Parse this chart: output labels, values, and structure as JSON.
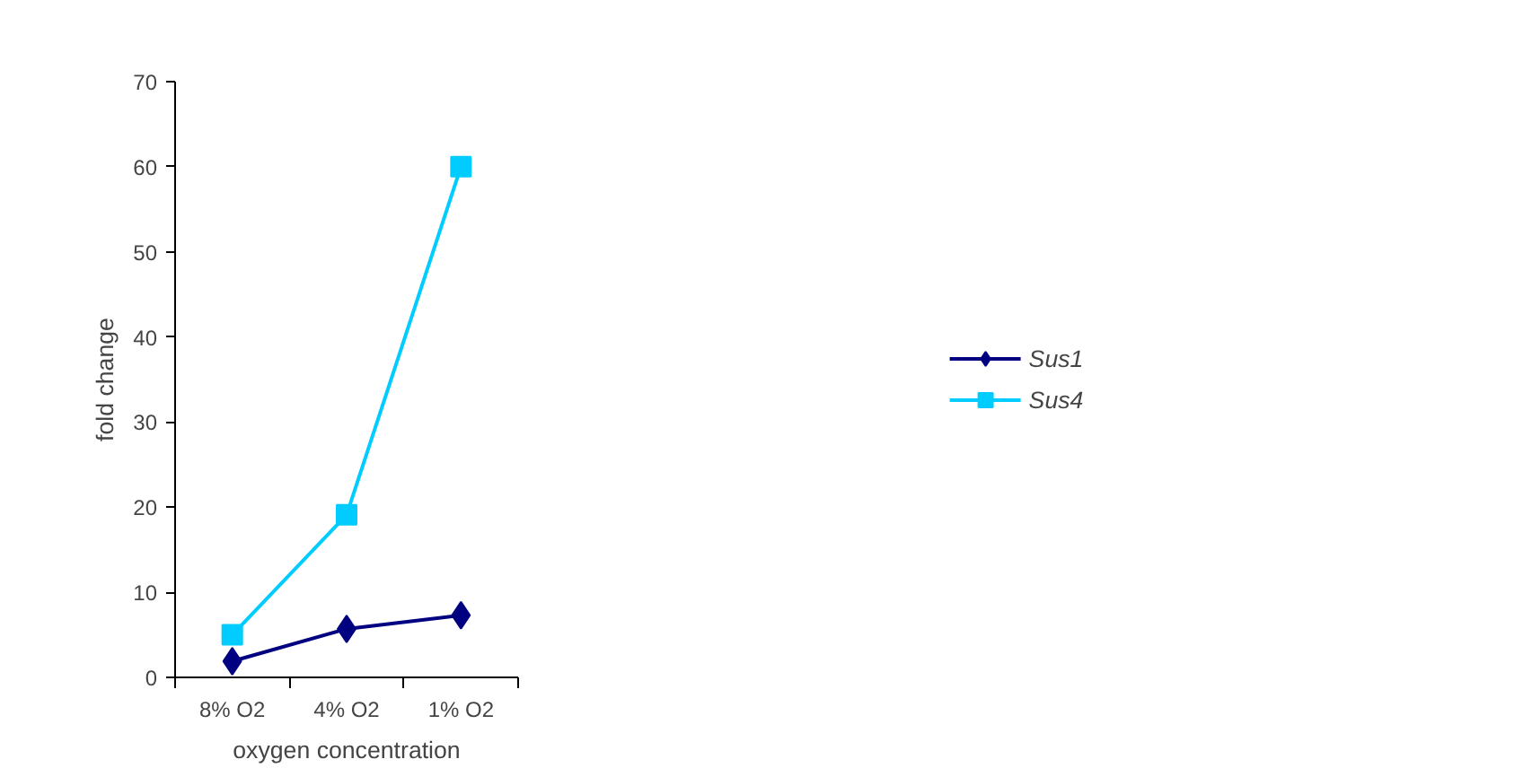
{
  "chart_data": {
    "type": "line",
    "xlabel": "oxygen concentration",
    "ylabel": "fold change",
    "categories": [
      "8% O2",
      "4% O2",
      "1% O2"
    ],
    "series": [
      {
        "name": "Sus1",
        "color": "#000080",
        "marker": "diamond",
        "values": [
          1.9,
          5.7,
          7.3
        ]
      },
      {
        "name": "Sus4",
        "color": "#00ccff",
        "marker": "square",
        "values": [
          5,
          19.1,
          60
        ]
      }
    ],
    "ylim": [
      0,
      70
    ],
    "yticks": [
      0,
      10,
      20,
      30,
      40,
      50,
      60,
      70
    ],
    "grid": false,
    "legend": "right",
    "line_style": "solid"
  }
}
